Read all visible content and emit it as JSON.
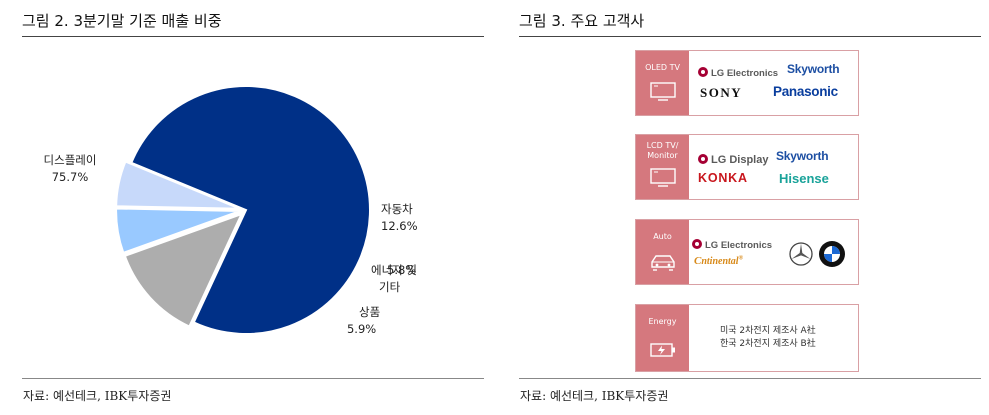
{
  "left_panel": {
    "title": "그림 2. 3분기말 기준 매출 비중",
    "source": "자료: 예선테크, IBK투자증권"
  },
  "right_panel": {
    "title": "그림 3. 주요 고객사",
    "source": "자료: 예선테크, IBK투자증권",
    "cards": [
      {
        "tag": "OLED TV",
        "icon": "tv-icon",
        "logos": [
          "LG Electronics",
          "Skyworth",
          "SONY",
          "Panasonic"
        ]
      },
      {
        "tag": "LCD TV/\nMonitor",
        "icon": "monitor-icon",
        "logos": [
          "LG Display",
          "Skyworth",
          "KONKA",
          "Hisense"
        ]
      },
      {
        "tag": "Auto",
        "icon": "car-icon",
        "logos": [
          "LG Electronics",
          "Continental",
          "Mercedes-Benz",
          "BMW"
        ]
      },
      {
        "tag": "Energy",
        "icon": "battery-icon",
        "lines": [
          "미국 2차전지 제조사 A社",
          "한국 2차전지 제조사 B社"
        ]
      }
    ]
  },
  "chart_data": {
    "type": "pie",
    "title": "",
    "slices": [
      {
        "label": "디스플레이",
        "value": 75.7,
        "value_label": "75.7%",
        "color": "#003087"
      },
      {
        "label": "자동차",
        "value": 12.6,
        "value_label": "12.6%",
        "color": "#adadad"
      },
      {
        "label": "에너지 및 기타",
        "label_lines": [
          "에너지 및",
          "기타"
        ],
        "value": 5.8,
        "value_label": "5.8%",
        "color": "#99c9ff"
      },
      {
        "label": "상품",
        "value": 5.9,
        "value_label": "5.9%",
        "color": "#c7d9fa"
      }
    ]
  }
}
